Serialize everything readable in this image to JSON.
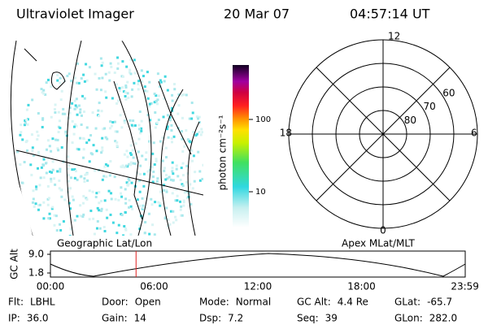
{
  "header": {
    "instrument": "Ultraviolet Imager",
    "date": "20 Mar 07",
    "time": "04:57:14 UT"
  },
  "map": {
    "label": "Geographic Lat/Lon"
  },
  "colorbar": {
    "label": "photon cm⁻²s⁻¹",
    "ticks": [
      10,
      100
    ]
  },
  "polar": {
    "label": "Apex MLat/MLT",
    "mlt_labels": [
      "12",
      "18",
      "6",
      "0"
    ],
    "lat_labels": [
      80,
      70,
      60
    ]
  },
  "altitude_plot": {
    "ylabel": "GC Alt",
    "yticks": [
      {
        "value": 9,
        "label": "9.0"
      },
      {
        "value": 1.8,
        "label": "1.8"
      }
    ],
    "xticks": [
      "00:00",
      "06:00",
      "12:00",
      "18:00",
      "23:59"
    ]
  },
  "footer": {
    "rows": [
      [
        {
          "label": "Flt:",
          "value": "LBHL"
        },
        {
          "label": "Door:",
          "value": "Open"
        },
        {
          "label": "Mode:",
          "value": "Normal"
        },
        {
          "label": "GC Alt:",
          "value": "4.4 Re"
        },
        {
          "label": "GLat:",
          "value": "-65.7"
        }
      ],
      [
        {
          "label": "IP:",
          "value": "36.0"
        },
        {
          "label": "Gain:",
          "value": "14"
        },
        {
          "label": "Dsp:",
          "value": "7.2"
        },
        {
          "label": "Seq:",
          "value": "39"
        },
        {
          "label": "GLon:",
          "value": "282.0"
        }
      ]
    ]
  }
}
